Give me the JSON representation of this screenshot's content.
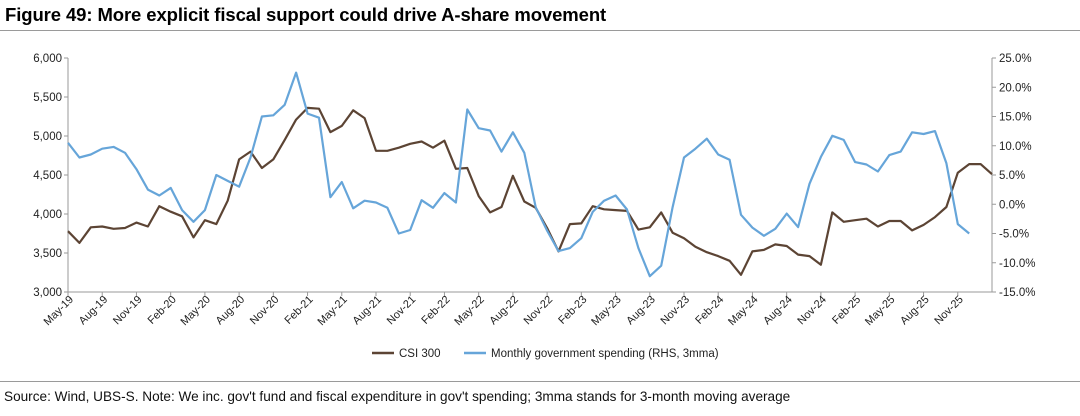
{
  "figure": {
    "title": "Figure 49: More explicit fiscal support could drive A-share movement",
    "source": "Source: Wind, UBS-S. Note: We inc. gov't fund and fiscal expenditure in gov't spending; 3mma stands for 3-month moving average"
  },
  "chart_data": {
    "type": "line",
    "title": "More explicit fiscal support could drive A-share movement",
    "x_tick_labels": [
      "May-19",
      "Aug-19",
      "Nov-19",
      "Feb-20",
      "May-20",
      "Aug-20",
      "Nov-20",
      "Feb-21",
      "May-21",
      "Aug-21",
      "Nov-21",
      "Feb-22",
      "May-22",
      "Aug-22",
      "Nov-22",
      "Feb-23",
      "May-23",
      "Aug-23",
      "Nov-23",
      "Feb-24",
      "May-24",
      "Aug-24",
      "Nov-24",
      "Feb-25",
      "May-25",
      "Aug-25",
      "Nov-25"
    ],
    "y_left": {
      "min": 3000,
      "max": 6000,
      "step": 500,
      "tick_labels": [
        "3,000",
        "3,500",
        "4,000",
        "4,500",
        "5,000",
        "5,500",
        "6,000"
      ]
    },
    "y_right": {
      "min": -15,
      "max": 25,
      "step": 5,
      "unit": "%",
      "tick_labels": [
        "-15.0%",
        "-10.0%",
        "-5.0%",
        "0.0%",
        "5.0%",
        "10.0%",
        "15.0%",
        "20.0%",
        "25.0%"
      ]
    },
    "legend_position": "bottom-center",
    "series": [
      {
        "name": "CSI 300",
        "axis": "left",
        "color": "#5c4434",
        "values": [
          3780,
          3630,
          3830,
          3840,
          3810,
          3820,
          3890,
          3840,
          4100,
          4030,
          3970,
          3700,
          3920,
          3870,
          4170,
          4700,
          4800,
          4590,
          4700,
          4950,
          5210,
          5360,
          5350,
          5050,
          5130,
          5330,
          5230,
          4810,
          4810,
          4850,
          4900,
          4930,
          4850,
          4940,
          4580,
          4590,
          4230,
          4020,
          4090,
          4490,
          4160,
          4080,
          3820,
          3520,
          3870,
          3880,
          4100,
          4060,
          4050,
          4040,
          3800,
          3830,
          4020,
          3760,
          3690,
          3580,
          3510,
          3460,
          3400,
          3220,
          3520,
          3540,
          3610,
          3590,
          3480,
          3460,
          3350,
          4020,
          3900,
          3920,
          3940,
          3840,
          3910,
          3910,
          3790,
          3860,
          3960,
          4090,
          4530,
          4640,
          4640,
          4510
        ]
      },
      {
        "name": "Monthly government spending (RHS, 3mma)",
        "axis": "right",
        "color": "#66a5d9",
        "values": [
          10.5,
          8.0,
          8.5,
          9.5,
          9.8,
          8.8,
          6.0,
          2.5,
          1.5,
          2.8,
          -1.0,
          -3.0,
          -1.0,
          5.0,
          4.0,
          3.0,
          8.0,
          15.0,
          15.2,
          17.0,
          22.5,
          15.5,
          14.8,
          1.2,
          3.8,
          -0.7,
          0.6,
          0.3,
          -0.6,
          -5.0,
          -4.4,
          0.7,
          -0.6,
          1.9,
          0.3,
          16.2,
          13.0,
          12.6,
          9.0,
          12.3,
          8.8,
          -0.5,
          -4.5,
          -8.0,
          -7.5,
          -5.8,
          -1.3,
          0.6,
          1.5,
          -0.9,
          -7.5,
          -12.3,
          -10.5,
          -0.5,
          8.0,
          9.5,
          11.2,
          8.5,
          7.6,
          -1.8,
          -4.0,
          -5.4,
          -4.2,
          -1.6,
          -3.9,
          3.5,
          8.1,
          11.7,
          11.0,
          7.2,
          6.8,
          5.6,
          8.4,
          9.0,
          12.3,
          12.0,
          12.5,
          7.0,
          -3.4,
          -5.0
        ]
      }
    ]
  }
}
